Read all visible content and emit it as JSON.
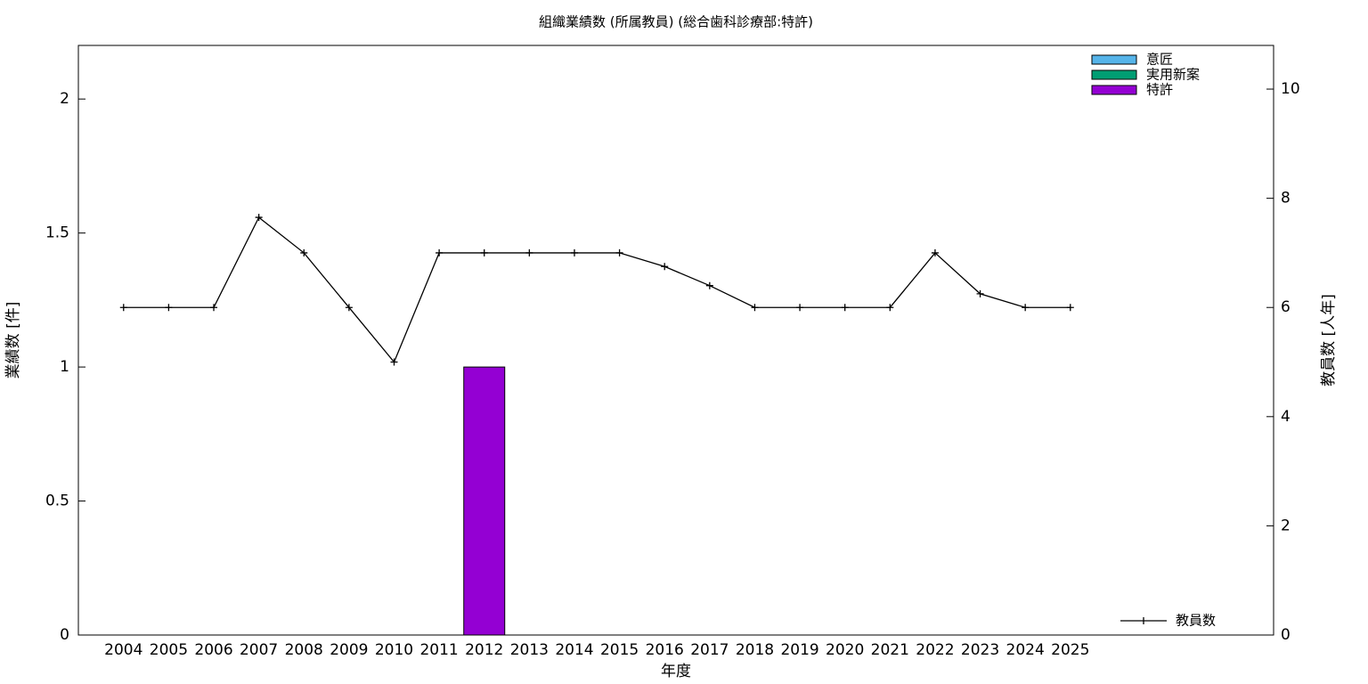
{
  "chart_data": {
    "type": "bar",
    "title": "組織業績数 (所属教員) (総合歯科診療部:特許)",
    "x_label": "年度",
    "y_label": "業績数 [件]",
    "y2_label": "教員数 [人年]",
    "categories": [
      "2004",
      "2005",
      "2006",
      "2007",
      "2008",
      "2009",
      "2010",
      "2011",
      "2012",
      "2013",
      "2014",
      "2015",
      "2016",
      "2017",
      "2018",
      "2019",
      "2020",
      "2021",
      "2022",
      "2023",
      "2024",
      "2025"
    ],
    "stacked": true,
    "series": [
      {
        "name": "意匠",
        "color": "#56b4e9",
        "values": [
          0,
          0,
          0,
          0,
          0,
          0,
          0,
          0,
          0,
          0,
          0,
          0,
          0,
          0,
          0,
          0,
          0,
          0,
          0,
          0,
          0,
          0
        ]
      },
      {
        "name": "実用新案",
        "color": "#009e73",
        "values": [
          0,
          0,
          0,
          0,
          0,
          0,
          0,
          0,
          0,
          0,
          0,
          0,
          0,
          0,
          0,
          0,
          0,
          0,
          0,
          0,
          0,
          0
        ]
      },
      {
        "name": "特許",
        "color": "#9400d3",
        "values": [
          0,
          0,
          0,
          0,
          0,
          0,
          0,
          0,
          1,
          0,
          0,
          0,
          0,
          0,
          0,
          0,
          0,
          0,
          0,
          0,
          0,
          0
        ]
      },
      {
        "name": "教員数",
        "type": "line",
        "axis": "y2",
        "color": "#000000",
        "values": [
          6,
          6,
          6,
          7.65,
          7,
          6,
          5,
          7,
          7,
          7,
          7,
          7,
          6.75,
          6.4,
          6,
          6,
          6,
          6,
          7,
          6.25,
          6,
          6
        ]
      }
    ],
    "ylim": [
      0,
      2.2
    ],
    "yticks": [
      0,
      0.5,
      1,
      1.5,
      2
    ],
    "y2lim": [
      0,
      10.8
    ],
    "y2ticks": [
      0,
      2,
      4,
      6,
      8,
      10
    ],
    "grid": false,
    "legend": "top-right",
    "line_legend": "bottom-right"
  }
}
